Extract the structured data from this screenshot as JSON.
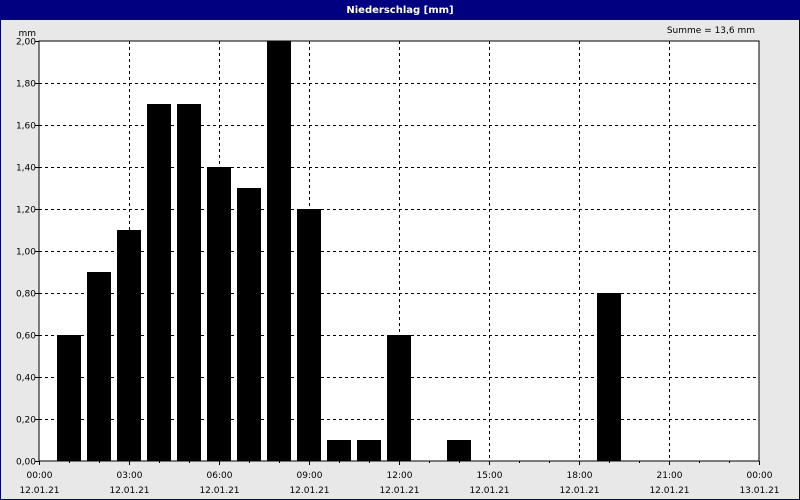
{
  "window": {
    "title": "Niederschlag [mm]"
  },
  "summary": {
    "text": "Summe = 13,6 mm"
  },
  "chart_data": {
    "type": "bar",
    "title": "Niederschlag [mm]",
    "ylabel": "mm",
    "xlabel": "",
    "ylim": [
      0,
      2.0
    ],
    "yticks": [
      {
        "value": 0.0,
        "label": "0,00"
      },
      {
        "value": 0.2,
        "label": "0,20"
      },
      {
        "value": 0.4,
        "label": "0,40"
      },
      {
        "value": 0.6,
        "label": "0,60"
      },
      {
        "value": 0.8,
        "label": "0,80"
      },
      {
        "value": 1.0,
        "label": "1,00"
      },
      {
        "value": 1.2,
        "label": "1,20"
      },
      {
        "value": 1.4,
        "label": "1,40"
      },
      {
        "value": 1.6,
        "label": "1,60"
      },
      {
        "value": 1.8,
        "label": "1,80"
      },
      {
        "value": 2.0,
        "label": "2,00"
      }
    ],
    "xlim_hours": [
      0,
      24
    ],
    "xticks": [
      {
        "hour": 0,
        "time": "00:00",
        "date": "12.01.21"
      },
      {
        "hour": 3,
        "time": "03:00",
        "date": "12.01.21"
      },
      {
        "hour": 6,
        "time": "06:00",
        "date": "12.01.21"
      },
      {
        "hour": 9,
        "time": "09:00",
        "date": "12.01.21"
      },
      {
        "hour": 12,
        "time": "12:00",
        "date": "12.01.21"
      },
      {
        "hour": 15,
        "time": "15:00",
        "date": "12.01.21"
      },
      {
        "hour": 18,
        "time": "18:00",
        "date": "12.01.21"
      },
      {
        "hour": 21,
        "time": "21:00",
        "date": "12.01.21"
      },
      {
        "hour": 24,
        "time": "00:00",
        "date": "13.01.21"
      }
    ],
    "bars": [
      {
        "hour": 1,
        "value": 0.6
      },
      {
        "hour": 2,
        "value": 0.9
      },
      {
        "hour": 3,
        "value": 1.1
      },
      {
        "hour": 4,
        "value": 1.7
      },
      {
        "hour": 5,
        "value": 1.7
      },
      {
        "hour": 6,
        "value": 1.4
      },
      {
        "hour": 7,
        "value": 1.3
      },
      {
        "hour": 8,
        "value": 2.0
      },
      {
        "hour": 9,
        "value": 1.2
      },
      {
        "hour": 10,
        "value": 0.1
      },
      {
        "hour": 11,
        "value": 0.1
      },
      {
        "hour": 12,
        "value": 0.6
      },
      {
        "hour": 14,
        "value": 0.1
      },
      {
        "hour": 19,
        "value": 0.8
      }
    ],
    "grid": true,
    "bar_color": "#000000",
    "plot_background": "#ffffff",
    "grid_color": "#000000"
  }
}
